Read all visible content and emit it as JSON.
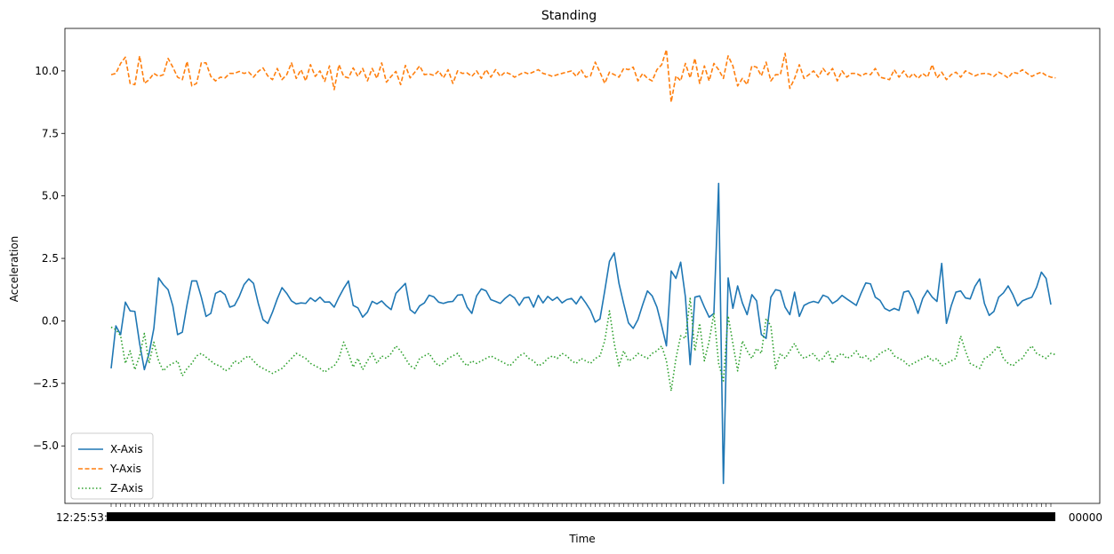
{
  "chart_data": {
    "type": "line",
    "title": "Standing",
    "xlabel": "Time",
    "ylabel": "Acceleration",
    "ylim": [
      -7.3,
      11.7
    ],
    "yticks": [
      "−5.0",
      "−2.5",
      "0.0",
      "2.5",
      "5.0",
      "7.5",
      "10.0"
    ],
    "ytick_values": [
      -5.0,
      -2.5,
      0.0,
      2.5,
      5.0,
      7.5,
      10.0
    ],
    "x_tick_labels_overlapping": true,
    "x_tick_label_start": "12:25:53:23",
    "x_tick_label_end": "00000",
    "legend": {
      "loc": "lower-left",
      "entries": [
        "X-Axis",
        "Y-Axis",
        "Z-Axis"
      ]
    },
    "series": [
      {
        "name": "X-Axis",
        "color": "#1f77b4",
        "dash": "solid",
        "values": [
          -1.9,
          -0.2,
          -0.55,
          0.75,
          0.4,
          0.38,
          -0.9,
          -1.95,
          -1.3,
          -0.3,
          1.72,
          1.45,
          1.25,
          0.6,
          -0.55,
          -0.45,
          0.65,
          1.6,
          1.6,
          0.95,
          0.18,
          0.3,
          1.1,
          1.2,
          1.05,
          0.55,
          0.62,
          0.98,
          1.45,
          1.68,
          1.5,
          0.7,
          0.05,
          -0.1,
          0.35,
          0.88,
          1.33,
          1.1,
          0.8,
          0.68,
          0.72,
          0.7,
          0.92,
          0.78,
          0.95,
          0.75,
          0.76,
          0.55,
          0.95,
          1.3,
          1.6,
          0.62,
          0.52,
          0.15,
          0.35,
          0.78,
          0.68,
          0.8,
          0.6,
          0.45,
          1.1,
          1.3,
          1.5,
          0.45,
          0.3,
          0.6,
          0.72,
          1.03,
          0.96,
          0.75,
          0.7,
          0.76,
          0.78,
          1.03,
          1.05,
          0.55,
          0.3,
          1.0,
          1.28,
          1.2,
          0.85,
          0.78,
          0.7,
          0.9,
          1.05,
          0.92,
          0.62,
          0.92,
          0.95,
          0.55,
          1.02,
          0.72,
          0.98,
          0.82,
          0.95,
          0.72,
          0.85,
          0.9,
          0.68,
          0.98,
          0.72,
          0.42,
          -0.05,
          0.08,
          1.2,
          2.38,
          2.72,
          1.5,
          0.68,
          -0.08,
          -0.3,
          0.05,
          0.65,
          1.2,
          1.0,
          0.55,
          -0.2,
          -1.0,
          2.0,
          1.7,
          2.35,
          0.95,
          -1.75,
          0.95,
          1.0,
          0.55,
          0.15,
          0.3,
          5.5,
          -6.5,
          1.72,
          0.5,
          1.4,
          0.72,
          0.25,
          1.05,
          0.8,
          -0.55,
          -0.7,
          0.95,
          1.25,
          1.2,
          0.55,
          0.25,
          1.15,
          0.18,
          0.62,
          0.72,
          0.78,
          0.72,
          1.03,
          0.95,
          0.7,
          0.82,
          1.02,
          0.88,
          0.75,
          0.62,
          1.1,
          1.52,
          1.48,
          0.95,
          0.82,
          0.5,
          0.4,
          0.5,
          0.42,
          1.15,
          1.2,
          0.85,
          0.3,
          0.9,
          1.22,
          0.95,
          0.78,
          2.3,
          -0.1,
          0.6,
          1.15,
          1.2,
          0.92,
          0.88,
          1.38,
          1.68,
          0.7,
          0.22,
          0.38,
          0.95,
          1.12,
          1.4,
          1.05,
          0.6,
          0.8,
          0.88,
          0.95,
          1.35,
          1.95,
          1.7,
          0.65
        ]
      },
      {
        "name": "Y-Axis",
        "color": "#ff7f0e",
        "dash": "dashed",
        "values": [
          9.85,
          9.9,
          10.3,
          10.55,
          9.5,
          9.45,
          10.6,
          9.5,
          9.65,
          9.9,
          9.78,
          9.85,
          10.5,
          10.15,
          9.75,
          9.65,
          10.38,
          9.4,
          9.5,
          10.32,
          10.32,
          9.78,
          9.6,
          9.75,
          9.72,
          9.9,
          9.9,
          9.98,
          9.9,
          9.95,
          9.75,
          9.98,
          10.12,
          9.8,
          9.65,
          10.1,
          9.65,
          9.85,
          10.32,
          9.7,
          10.05,
          9.6,
          10.25,
          9.78,
          10.0,
          9.58,
          10.2,
          9.25,
          10.25,
          9.78,
          9.72,
          10.12,
          9.78,
          10.1,
          9.6,
          10.1,
          9.7,
          10.32,
          9.55,
          9.78,
          9.98,
          9.45,
          10.22,
          9.72,
          9.95,
          10.2,
          9.85,
          9.88,
          9.82,
          10.0,
          9.72,
          10.05,
          9.5,
          10.0,
          9.9,
          9.92,
          9.78,
          10.0,
          9.7,
          10.05,
          9.75,
          10.05,
          9.78,
          9.95,
          9.88,
          9.75,
          9.85,
          9.95,
          9.88,
          9.96,
          10.05,
          9.9,
          9.85,
          9.78,
          9.85,
          9.9,
          9.95,
          10.0,
          9.78,
          10.05,
          9.75,
          9.8,
          10.35,
          9.95,
          9.5,
          9.95,
          9.85,
          9.75,
          10.1,
          10.05,
          10.15,
          9.6,
          9.9,
          9.7,
          9.6,
          10.05,
          10.25,
          10.85,
          8.75,
          9.8,
          9.6,
          10.3,
          9.72,
          10.5,
          9.5,
          10.2,
          9.6,
          10.3,
          10.05,
          9.7,
          10.6,
          10.2,
          9.4,
          9.7,
          9.45,
          10.2,
          10.15,
          9.8,
          10.35,
          9.6,
          9.85,
          9.85,
          10.7,
          9.3,
          9.7,
          10.25,
          9.7,
          9.85,
          10.0,
          9.75,
          10.1,
          9.85,
          10.1,
          9.6,
          10.0,
          9.75,
          9.9,
          9.9,
          9.8,
          9.9,
          9.85,
          10.1,
          9.75,
          9.7,
          9.65,
          10.05,
          9.75,
          10.0,
          9.7,
          9.9,
          9.7,
          9.9,
          9.75,
          10.25,
          9.72,
          9.95,
          9.65,
          9.85,
          9.95,
          9.75,
          10.0,
          9.9,
          9.8,
          9.88,
          9.9,
          9.88,
          9.78,
          9.95,
          9.85,
          9.72,
          9.95,
          9.9,
          10.05,
          9.9,
          9.78,
          9.88,
          9.95,
          9.82,
          9.75,
          9.72
        ]
      },
      {
        "name": "Z-Axis",
        "color": "#2ca02c",
        "dash": "dotted",
        "values": [
          -0.25,
          -0.35,
          -0.6,
          -1.7,
          -1.2,
          -1.95,
          -1.4,
          -0.5,
          -1.7,
          -0.85,
          -1.6,
          -2.0,
          -1.8,
          -1.7,
          -1.6,
          -2.2,
          -1.9,
          -1.7,
          -1.4,
          -1.3,
          -1.45,
          -1.6,
          -1.75,
          -1.8,
          -2.0,
          -1.9,
          -1.6,
          -1.7,
          -1.5,
          -1.4,
          -1.6,
          -1.8,
          -1.9,
          -2.0,
          -2.1,
          -2.0,
          -1.9,
          -1.7,
          -1.5,
          -1.3,
          -1.4,
          -1.5,
          -1.7,
          -1.8,
          -1.9,
          -2.05,
          -1.9,
          -1.8,
          -1.5,
          -0.85,
          -1.3,
          -1.85,
          -1.5,
          -1.95,
          -1.6,
          -1.3,
          -1.7,
          -1.4,
          -1.5,
          -1.3,
          -1.0,
          -1.2,
          -1.5,
          -1.8,
          -1.9,
          -1.5,
          -1.4,
          -1.3,
          -1.6,
          -1.8,
          -1.7,
          -1.5,
          -1.4,
          -1.3,
          -1.6,
          -1.8,
          -1.6,
          -1.7,
          -1.6,
          -1.5,
          -1.4,
          -1.5,
          -1.6,
          -1.7,
          -1.8,
          -1.6,
          -1.4,
          -1.3,
          -1.5,
          -1.6,
          -1.8,
          -1.7,
          -1.5,
          -1.4,
          -1.5,
          -1.3,
          -1.4,
          -1.6,
          -1.7,
          -1.5,
          -1.6,
          -1.7,
          -1.5,
          -1.4,
          -0.8,
          0.4,
          -0.9,
          -1.8,
          -1.2,
          -1.6,
          -1.5,
          -1.3,
          -1.4,
          -1.5,
          -1.3,
          -1.2,
          -1.0,
          -1.6,
          -2.8,
          -1.5,
          -0.6,
          -0.7,
          0.9,
          -1.2,
          -0.1,
          -1.6,
          -0.8,
          0.3,
          -1.7,
          -2.4,
          0.2,
          -0.9,
          -2.0,
          -0.8,
          -1.2,
          -1.5,
          -1.1,
          -1.3,
          0.1,
          -0.2,
          -1.9,
          -1.3,
          -1.5,
          -1.2,
          -0.9,
          -1.3,
          -1.5,
          -1.4,
          -1.3,
          -1.6,
          -1.5,
          -1.2,
          -1.7,
          -1.4,
          -1.3,
          -1.5,
          -1.4,
          -1.2,
          -1.5,
          -1.4,
          -1.6,
          -1.5,
          -1.3,
          -1.2,
          -1.1,
          -1.4,
          -1.5,
          -1.6,
          -1.8,
          -1.7,
          -1.6,
          -1.5,
          -1.4,
          -1.6,
          -1.5,
          -1.8,
          -1.7,
          -1.6,
          -1.5,
          -0.6,
          -1.2,
          -1.7,
          -1.8,
          -1.9,
          -1.5,
          -1.4,
          -1.2,
          -1.0,
          -1.5,
          -1.7,
          -1.8,
          -1.6,
          -1.5,
          -1.2,
          -1.0,
          -1.3,
          -1.4,
          -1.5,
          -1.3,
          -1.35
        ]
      }
    ]
  }
}
